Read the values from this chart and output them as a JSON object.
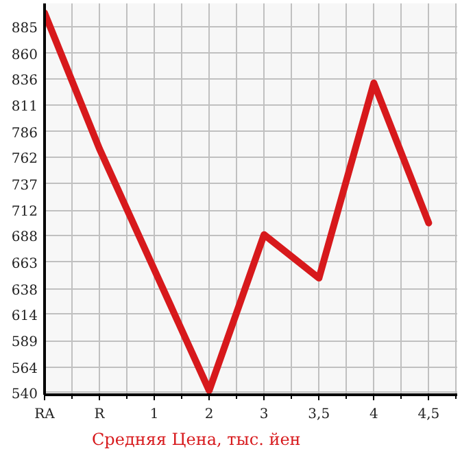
{
  "chart_data": {
    "type": "line",
    "categories": [
      "RA",
      "R",
      "1",
      "2",
      "3",
      "3,5",
      "4",
      "4,5"
    ],
    "series": [
      {
        "name": "Средняя Цена, тыс. йен",
        "color": "#d7191c",
        "values": [
          898,
          770,
          656,
          542,
          689,
          648,
          832,
          700
        ]
      }
    ],
    "ylim": [
      538,
      907
    ],
    "yticks": [
      540,
      564,
      589,
      614,
      638,
      663,
      688,
      712,
      737,
      762,
      786,
      811,
      836,
      860,
      885
    ],
    "grid": true,
    "legend": "bottom",
    "marker": "none",
    "line_style": "solid"
  }
}
